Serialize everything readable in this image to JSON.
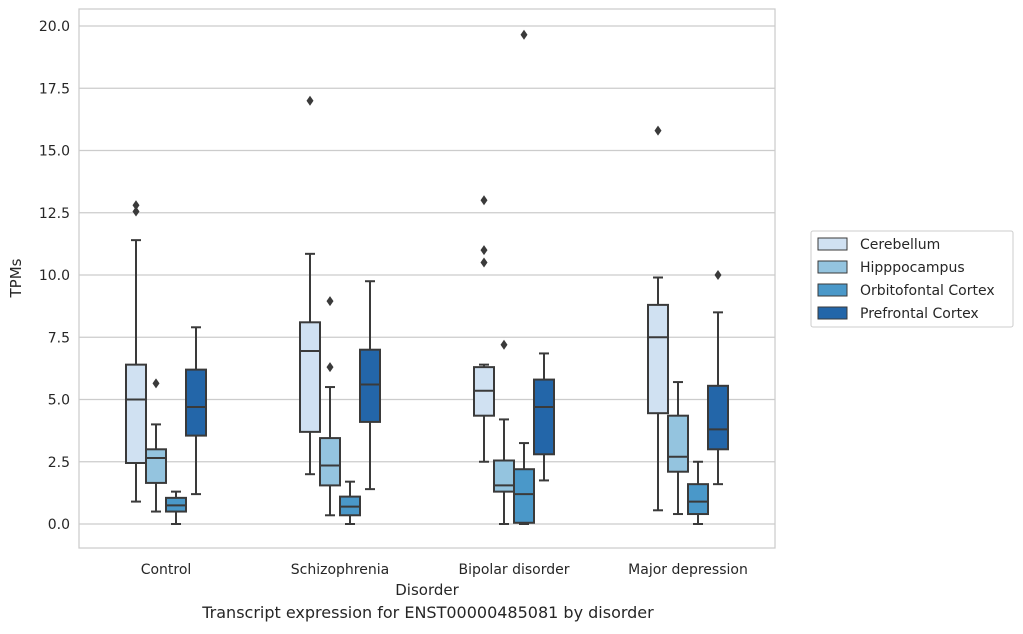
{
  "chart_data": {
    "type": "box",
    "xlabel": "Disorder",
    "ylabel": "TPMs",
    "caption": "Transcript expression for ENST00000485081 by disorder",
    "ylim": [
      -0.95,
      20.7
    ],
    "yticks": [
      0.0,
      2.5,
      5.0,
      7.5,
      10.0,
      12.5,
      15.0,
      17.5,
      20.0
    ],
    "ytick_labels": [
      "0.0",
      "2.5",
      "5.0",
      "7.5",
      "10.0",
      "12.5",
      "15.0",
      "17.5",
      "20.0"
    ],
    "grid": "horizontal",
    "legend_position": "right",
    "categories": [
      "Control",
      "Schizophrenia",
      "Bipolar disorder",
      "Major depression"
    ],
    "series": [
      {
        "name": "Cerebellum",
        "color": "#d0e1f2",
        "boxes": [
          {
            "whislo": 0.9,
            "q1": 2.45,
            "med": 5.0,
            "q3": 6.4,
            "whishi": 11.4,
            "fliers": [
              12.55,
              12.8
            ]
          },
          {
            "whislo": 2.0,
            "q1": 3.7,
            "med": 6.95,
            "q3": 8.1,
            "whishi": 10.85,
            "fliers": [
              17.0
            ]
          },
          {
            "whislo": 2.5,
            "q1": 4.35,
            "med": 5.35,
            "q3": 6.3,
            "whishi": 6.4,
            "fliers": [
              10.5,
              11.0,
              13.0
            ]
          },
          {
            "whislo": 0.55,
            "q1": 4.45,
            "med": 7.5,
            "q3": 8.8,
            "whishi": 9.9,
            "fliers": [
              15.8
            ]
          }
        ]
      },
      {
        "name": "Hipppocampus",
        "color": "#94c4df",
        "boxes": [
          {
            "whislo": 0.5,
            "q1": 1.65,
            "med": 2.65,
            "q3": 3.0,
            "whishi": 4.0,
            "fliers": [
              5.65
            ]
          },
          {
            "whislo": 0.35,
            "q1": 1.55,
            "med": 2.35,
            "q3": 3.45,
            "whishi": 5.5,
            "fliers": [
              6.3,
              8.95
            ]
          },
          {
            "whislo": 0.0,
            "q1": 1.3,
            "med": 1.55,
            "q3": 2.55,
            "whishi": 4.2,
            "fliers": [
              7.2
            ]
          },
          {
            "whislo": 0.4,
            "q1": 2.1,
            "med": 2.7,
            "q3": 4.35,
            "whishi": 5.7,
            "fliers": []
          }
        ]
      },
      {
        "name": "Orbitofontal Cortex",
        "color": "#4a98c9",
        "boxes": [
          {
            "whislo": 0.0,
            "q1": 0.5,
            "med": 0.75,
            "q3": 1.05,
            "whishi": 1.3,
            "fliers": []
          },
          {
            "whislo": 0.0,
            "q1": 0.35,
            "med": 0.7,
            "q3": 1.1,
            "whishi": 1.7,
            "fliers": []
          },
          {
            "whislo": 0.0,
            "q1": 0.05,
            "med": 1.2,
            "q3": 2.2,
            "whishi": 3.25,
            "fliers": [
              19.65
            ]
          },
          {
            "whislo": 0.0,
            "q1": 0.4,
            "med": 0.9,
            "q3": 1.6,
            "whishi": 2.5,
            "fliers": []
          }
        ]
      },
      {
        "name": "Prefrontal Cortex",
        "color": "#2366a9",
        "boxes": [
          {
            "whislo": 1.2,
            "q1": 3.55,
            "med": 4.7,
            "q3": 6.2,
            "whishi": 7.9,
            "fliers": []
          },
          {
            "whislo": 1.4,
            "q1": 4.1,
            "med": 5.6,
            "q3": 7.0,
            "whishi": 9.75,
            "fliers": []
          },
          {
            "whislo": 1.75,
            "q1": 2.8,
            "med": 4.7,
            "q3": 5.8,
            "whishi": 6.85,
            "fliers": []
          },
          {
            "whislo": 1.6,
            "q1": 3.0,
            "med": 3.8,
            "q3": 5.55,
            "whishi": 8.5,
            "fliers": [
              10.0
            ]
          }
        ]
      }
    ]
  }
}
